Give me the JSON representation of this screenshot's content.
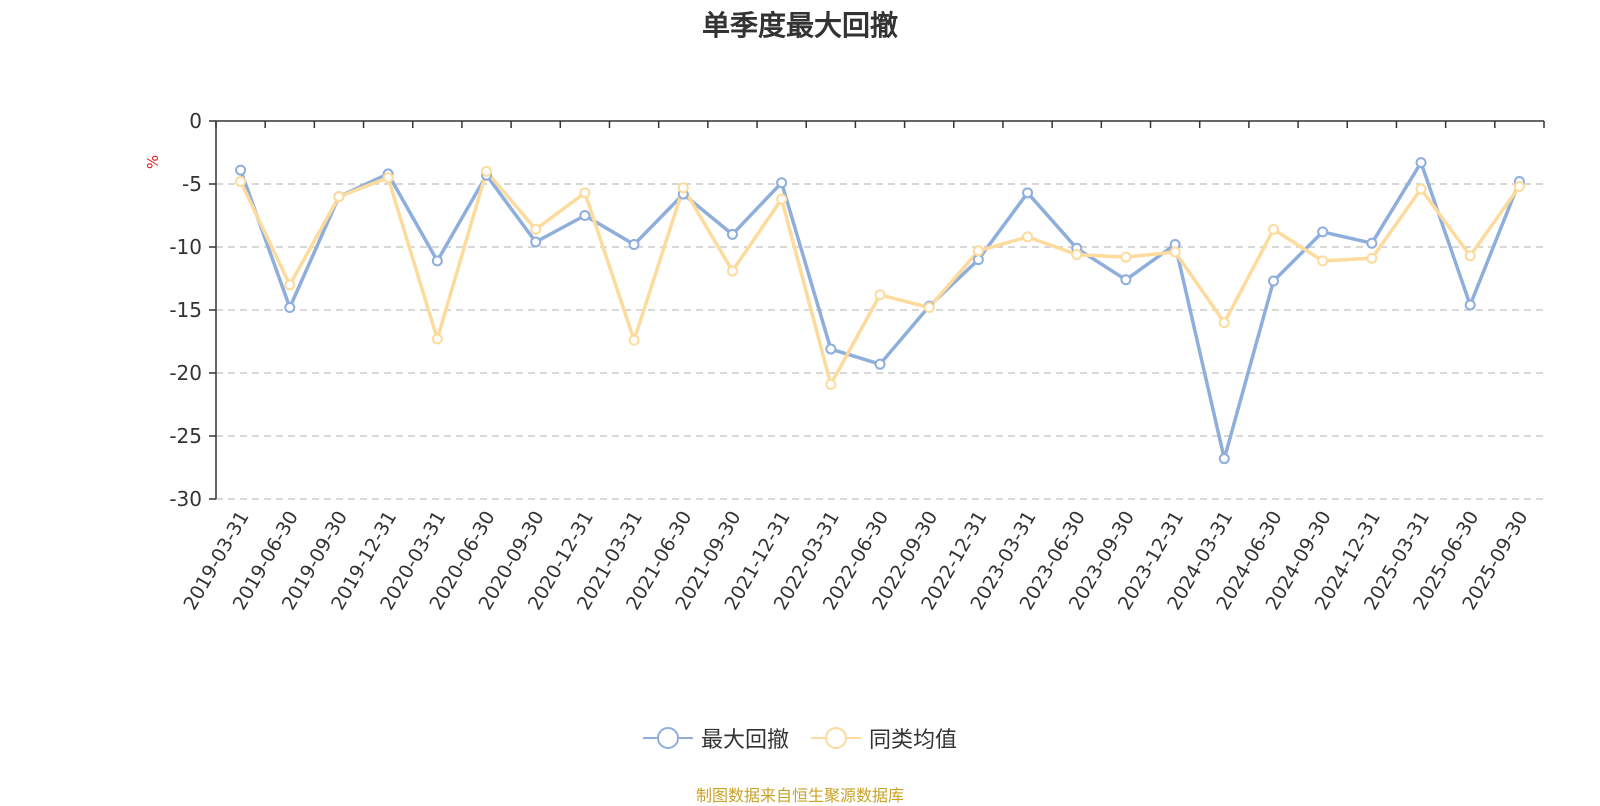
{
  "chart_data": {
    "type": "line",
    "title": "单季度最大回撤",
    "ylabel": "%",
    "ylim": [
      -30,
      0
    ],
    "yticks": [
      0,
      -5,
      -10,
      -15,
      -20,
      -25,
      -30
    ],
    "grid": true,
    "legend_position": "bottom",
    "categories": [
      "2019-03-31",
      "2019-06-30",
      "2019-09-30",
      "2019-12-31",
      "2020-03-31",
      "2020-06-30",
      "2020-09-30",
      "2020-12-31",
      "2021-03-31",
      "2021-06-30",
      "2021-09-30",
      "2021-12-31",
      "2022-03-31",
      "2022-06-30",
      "2022-09-30",
      "2022-12-31",
      "2023-03-31",
      "2023-06-30",
      "2023-09-30",
      "2023-12-31",
      "2024-03-31",
      "2024-06-30",
      "2024-09-30",
      "2024-12-31",
      "2025-03-31",
      "2025-06-30",
      "2025-09-30"
    ],
    "series": [
      {
        "name": "最大回撤",
        "color": "#8eaedc",
        "values": [
          -3.9,
          -14.8,
          -6.0,
          -4.2,
          -11.1,
          -4.3,
          -9.6,
          -7.5,
          -9.8,
          -5.8,
          -9.0,
          -4.9,
          -18.1,
          -19.3,
          -14.7,
          -11.0,
          -5.7,
          -10.1,
          -12.6,
          -9.8,
          -26.8,
          -12.7,
          -8.8,
          -9.7,
          -3.3,
          -14.6,
          -4.8
        ]
      },
      {
        "name": "同类均值",
        "color": "#fddb9c",
        "values": [
          -4.8,
          -13.0,
          -6.0,
          -4.5,
          -17.3,
          -4.0,
          -8.6,
          -5.7,
          -17.4,
          -5.3,
          -11.9,
          -6.2,
          -20.9,
          -13.8,
          -14.8,
          -10.3,
          -9.2,
          -10.6,
          -10.8,
          -10.4,
          -16.0,
          -8.6,
          -11.1,
          -10.9,
          -5.4,
          -10.7,
          -5.2
        ]
      }
    ],
    "source": "制图数据来自恒生聚源数据库"
  }
}
